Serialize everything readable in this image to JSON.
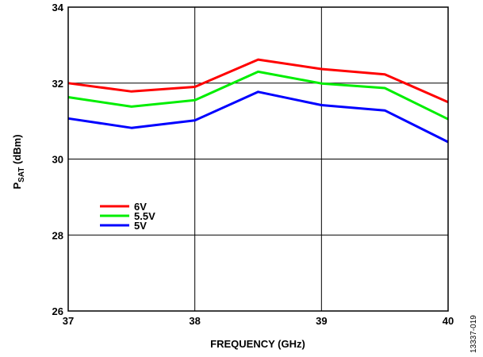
{
  "chart_data": {
    "type": "line",
    "x": [
      37,
      37.5,
      38,
      38.5,
      39,
      39.5,
      40
    ],
    "xlabel": "FREQUENCY (GHz)",
    "ylabel": {
      "base": "P",
      "sub": "SAT",
      "rest": " (dBm)"
    },
    "xlim": [
      37,
      40
    ],
    "ylim": [
      26,
      34
    ],
    "xticks": [
      37,
      38,
      39,
      40
    ],
    "yticks": [
      26,
      28,
      30,
      32,
      34
    ],
    "grid": true,
    "legend_position": "lower-left",
    "series": [
      {
        "name": "6V",
        "color": "#ff0000",
        "values": [
          32.0,
          31.78,
          31.9,
          32.62,
          32.37,
          32.23,
          31.5
        ]
      },
      {
        "name": "5.5V",
        "color": "#00ee00",
        "values": [
          31.63,
          31.38,
          31.55,
          32.3,
          31.99,
          31.87,
          31.05
        ]
      },
      {
        "name": "5V",
        "color": "#0000ff",
        "values": [
          31.07,
          30.82,
          31.02,
          31.77,
          31.42,
          31.28,
          30.45
        ]
      }
    ]
  },
  "figure_id": "13337-019"
}
